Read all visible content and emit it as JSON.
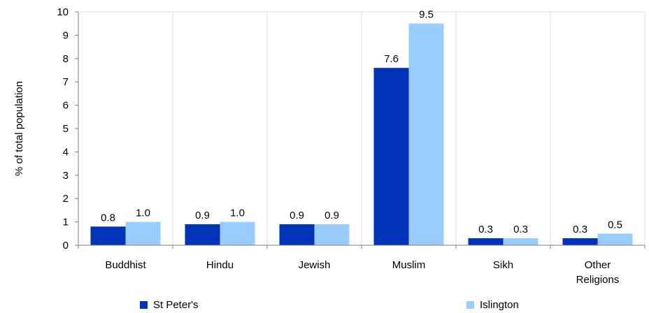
{
  "chart_data": {
    "type": "bar",
    "title": "",
    "xlabel": "",
    "ylabel": "% of total population",
    "ylim": [
      0,
      10
    ],
    "yticks": [
      0,
      1,
      2,
      3,
      4,
      5,
      6,
      7,
      8,
      9,
      10
    ],
    "grid": "vertical category separators",
    "categories": [
      [
        "Buddhist"
      ],
      [
        "Hindu"
      ],
      [
        "Jewish"
      ],
      [
        "Muslim"
      ],
      [
        "Sikh"
      ],
      [
        "Other",
        "Religions"
      ]
    ],
    "series": [
      {
        "name": "St Peter's",
        "color": "#0033b8",
        "values": [
          0.8,
          0.9,
          0.9,
          7.6,
          0.3,
          0.3
        ],
        "labels": [
          "0.8",
          "0.9",
          "0.9",
          "7.6",
          "0.3",
          "0.3"
        ]
      },
      {
        "name": "Islington",
        "color": "#99ccff",
        "values": [
          1.0,
          1.0,
          0.9,
          9.5,
          0.3,
          0.5
        ],
        "labels": [
          "1.0",
          "1.0",
          "0.9",
          "9.5",
          "0.3",
          "0.5"
        ]
      }
    ],
    "legend_position": "bottom"
  }
}
